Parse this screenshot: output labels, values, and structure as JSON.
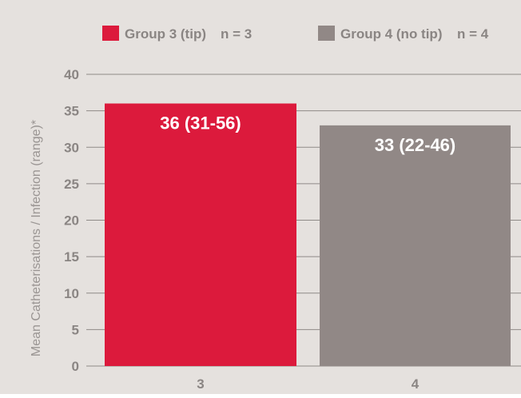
{
  "chart_data": {
    "type": "bar",
    "categories": [
      "3",
      "4"
    ],
    "series": [
      {
        "name": "Group 3 (tip)",
        "n_label": "n = 3",
        "color": "#dc1a3c",
        "value": 36,
        "value_label": "36 (31-56)"
      },
      {
        "name": "Group 4 (no tip)",
        "n_label": "n = 4",
        "color": "#918886",
        "value": 33,
        "value_label": "33 (22-46)"
      }
    ],
    "ylabel": "Mean Catheterisations / Infection (range)*",
    "ylim": [
      0,
      40
    ],
    "yticks": [
      "0",
      "5",
      "10",
      "15",
      "20",
      "25",
      "30",
      "35",
      "40"
    ],
    "grid": true,
    "legend_position": "top",
    "colors": {
      "background": "#e5e1de",
      "gridline": "#8f8a87",
      "tick_text": "#8a8583",
      "bar_label_text": "#ffffff",
      "axis_label_text": "#9a9593"
    }
  }
}
